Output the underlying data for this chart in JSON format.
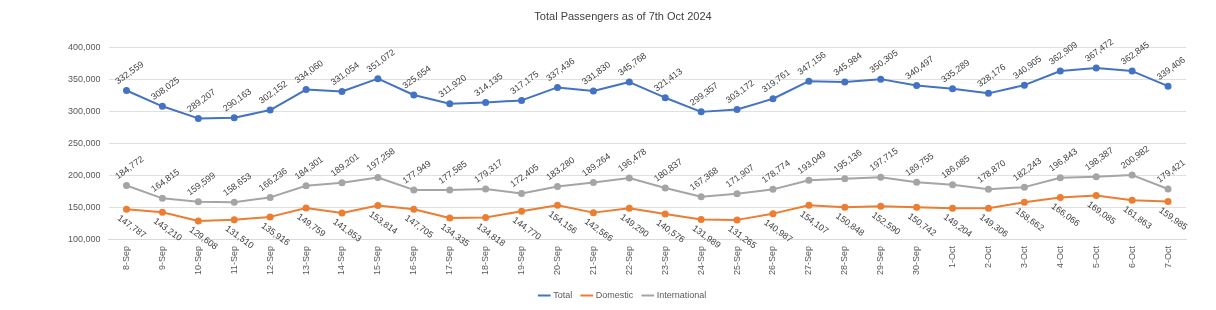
{
  "chart_data": {
    "type": "line",
    "title": "Total Passengers as of 7th Oct 2024",
    "categories": [
      "8-Sep",
      "9-Sep",
      "10-Sep",
      "11-Sep",
      "12-Sep",
      "13-Sep",
      "14-Sep",
      "15-Sep",
      "16-Sep",
      "17-Sep",
      "18-Sep",
      "19-Sep",
      "20-Sep",
      "21-Sep",
      "22-Sep",
      "23-Sep",
      "24-Sep",
      "25-Sep",
      "26-Sep",
      "27-Sep",
      "28-Sep",
      "29-Sep",
      "30-Sep",
      "1-Oct",
      "2-Oct",
      "3-Oct",
      "4-Oct",
      "5-Oct",
      "6-Oct",
      "7-Oct"
    ],
    "series": [
      {
        "name": "Total",
        "color": "#4472c4",
        "values": [
          332559,
          308025,
          289207,
          290163,
          302152,
          334060,
          331054,
          351072,
          325654,
          311920,
          314135,
          317175,
          337436,
          331830,
          345768,
          321413,
          299357,
          303172,
          319761,
          347156,
          345984,
          350305,
          340497,
          335289,
          328176,
          340905,
          362909,
          367472,
          362845,
          339406
        ],
        "value_labels": [
          "332,559",
          "308,025",
          "289,207",
          "290,163",
          "302,152",
          "334,060",
          "331,054",
          "351,072",
          "325,654",
          "311,920",
          "314,135",
          "317,175",
          "337,436",
          "331,830",
          "345,768",
          "321,413",
          "299,357",
          "303,172",
          "319,761",
          "347,156",
          "345,984",
          "350,305",
          "340,497",
          "335,289",
          "328,176",
          "340,905",
          "362,909",
          "367,472",
          "362,845",
          "339,406"
        ]
      },
      {
        "name": "Domestic",
        "color": "#ed7d31",
        "values": [
          147787,
          143210,
          129608,
          131510,
          135916,
          149759,
          141853,
          153814,
          147705,
          134335,
          134818,
          144770,
          154156,
          142566,
          149290,
          140576,
          131989,
          131265,
          140987,
          154107,
          150848,
          152590,
          150742,
          149204,
          149306,
          158662,
          166066,
          169085,
          161863,
          159985
        ],
        "value_labels": [
          "147,787",
          "143,210",
          "129,608",
          "131,510",
          "135,916",
          "149,759",
          "141,853",
          "153,814",
          "147,705",
          "134,335",
          "134,818",
          "144,770",
          "154,156",
          "142,566",
          "149,290",
          "140,576",
          "131,989",
          "131,265",
          "140,987",
          "154,107",
          "150,848",
          "152,590",
          "150,742",
          "149,204",
          "149,306",
          "158,662",
          "166,066",
          "169,085",
          "161,863",
          "159,985"
        ]
      },
      {
        "name": "International",
        "color": "#a5a5a5",
        "values": [
          184772,
          164815,
          159599,
          158653,
          166236,
          184301,
          189201,
          197258,
          177949,
          177585,
          179317,
          172405,
          183280,
          189264,
          196478,
          180837,
          167368,
          171907,
          178774,
          193049,
          195136,
          197715,
          189755,
          186085,
          178870,
          182243,
          196843,
          198387,
          200982,
          179421
        ],
        "value_labels": [
          "184,772",
          "164,815",
          "159,599",
          "158,653",
          "166,236",
          "184,301",
          "189,201",
          "197,258",
          "177,949",
          "177,585",
          "179,317",
          "172,405",
          "183,280",
          "189,264",
          "196,478",
          "180,837",
          "167,368",
          "171,907",
          "178,774",
          "193,049",
          "195,136",
          "197,715",
          "189,755",
          "186,085",
          "178,870",
          "182,243",
          "196,843",
          "198,387",
          "200,982",
          "179,421"
        ]
      }
    ],
    "ylim": [
      100000,
      400000
    ],
    "yticks": [
      {
        "value": 100000,
        "label": "100,000"
      },
      {
        "value": 150000,
        "label": "150,000"
      },
      {
        "value": 200000,
        "label": "200,000"
      },
      {
        "value": 250000,
        "label": "250,000"
      },
      {
        "value": 300000,
        "label": "300,000"
      },
      {
        "value": 350000,
        "label": "350,000"
      },
      {
        "value": 400000,
        "label": "400,000"
      }
    ],
    "grid": "y",
    "legend": "bottom",
    "marker": "circle",
    "line_style": "solid"
  }
}
